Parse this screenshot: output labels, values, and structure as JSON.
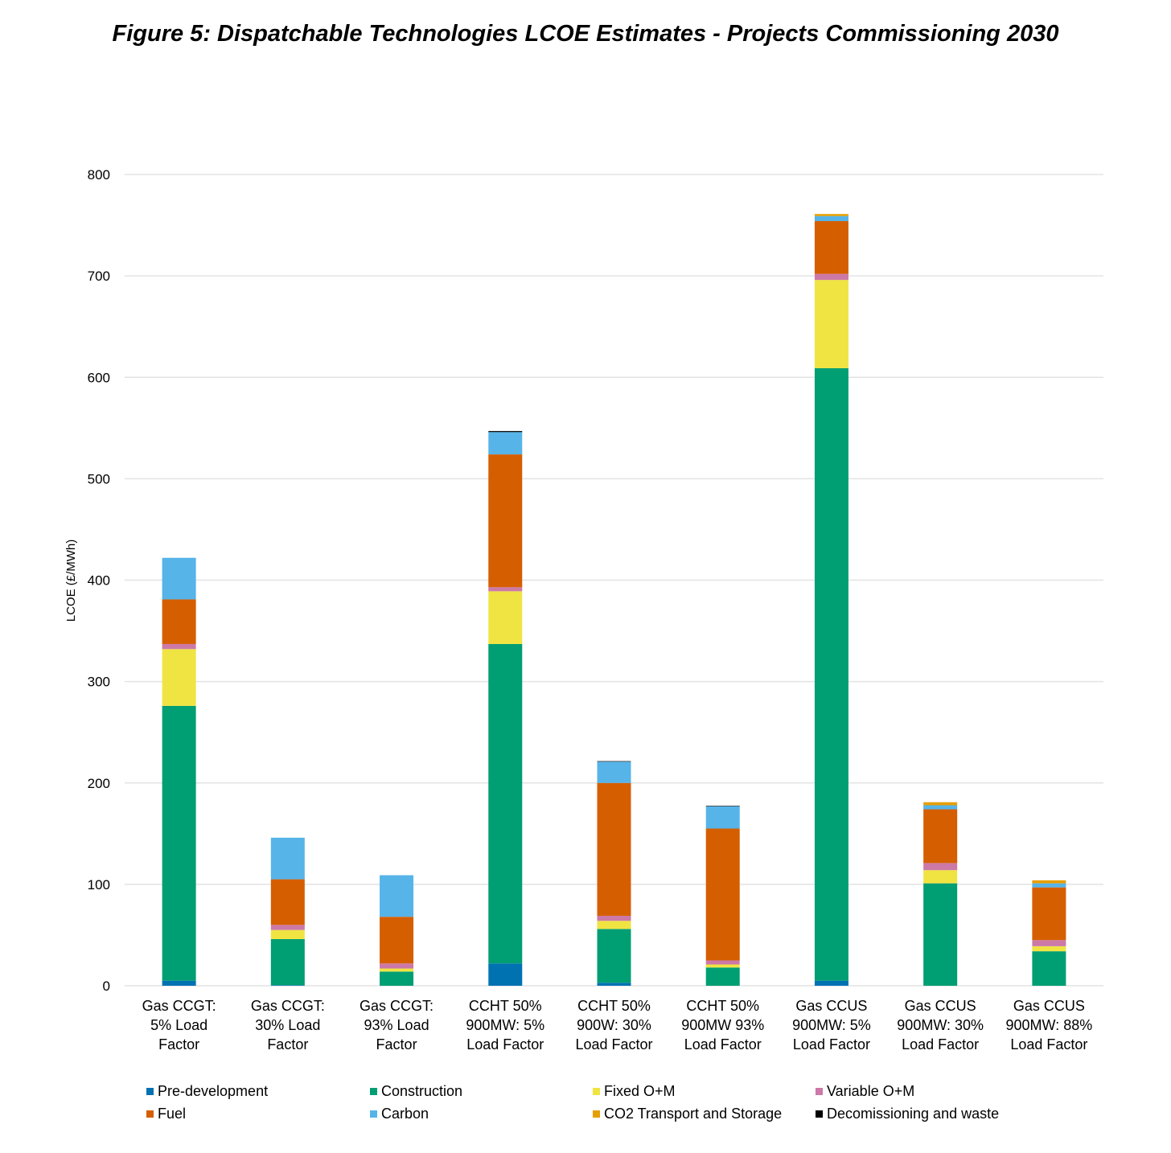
{
  "chart_data": {
    "type": "bar",
    "stacked": true,
    "title": "Figure 5: Dispatchable Technologies LCOE Estimates - Projects Commissioning 2030",
    "xlabel": "",
    "ylabel": "LCOE (£/MWh)",
    "ylim": [
      0,
      800
    ],
    "yticks": [
      0,
      100,
      200,
      300,
      400,
      500,
      600,
      700,
      800
    ],
    "grid": true,
    "legend_position": "bottom",
    "categories": [
      [
        "Gas CCGT:",
        "5% Load",
        "Factor"
      ],
      [
        "Gas CCGT:",
        "30% Load",
        "Factor"
      ],
      [
        "Gas CCGT:",
        "93% Load",
        "Factor"
      ],
      [
        "CCHT 50%",
        "900MW: 5%",
        "Load Factor"
      ],
      [
        "CCHT 50%",
        "900W: 30%",
        "Load Factor"
      ],
      [
        "CCHT 50%",
        "900MW 93%",
        "Load Factor"
      ],
      [
        "Gas CCUS",
        "900MW: 5%",
        "Load Factor"
      ],
      [
        "Gas CCUS",
        "900MW: 30%",
        "Load Factor"
      ],
      [
        "Gas CCUS",
        "900MW: 88%",
        "Load Factor"
      ]
    ],
    "series": [
      {
        "name": "Pre-development",
        "color": "#0072b2",
        "values": [
          5,
          0.5,
          0,
          22,
          3,
          0,
          5,
          0,
          0
        ]
      },
      {
        "name": "Construction",
        "color": "#009e73",
        "values": [
          271,
          45.5,
          14,
          315,
          53,
          18,
          604,
          101,
          34
        ]
      },
      {
        "name": "Fixed O+M",
        "color": "#f0e442",
        "values": [
          56,
          9,
          3,
          52,
          8,
          3,
          87,
          13,
          5
        ]
      },
      {
        "name": "Variable O+M",
        "color": "#cc79a7",
        "values": [
          5,
          5,
          5,
          4,
          5,
          4,
          6,
          7,
          6
        ]
      },
      {
        "name": "Fuel",
        "color": "#d55e00",
        "values": [
          44,
          45,
          46,
          131,
          131,
          130,
          52,
          53,
          52
        ]
      },
      {
        "name": "Carbon",
        "color": "#56b4e9",
        "values": [
          41,
          41,
          41,
          22,
          21,
          22,
          5,
          4,
          4
        ]
      },
      {
        "name": "CO2 Transport and Storage",
        "color": "#e69f00",
        "values": [
          0,
          0,
          0,
          0,
          0,
          0,
          2,
          3,
          3
        ]
      },
      {
        "name": "Decomissioning and waste",
        "color": "#000000",
        "values": [
          0,
          0,
          0,
          1,
          0.5,
          0.5,
          0,
          0,
          0
        ]
      }
    ]
  }
}
